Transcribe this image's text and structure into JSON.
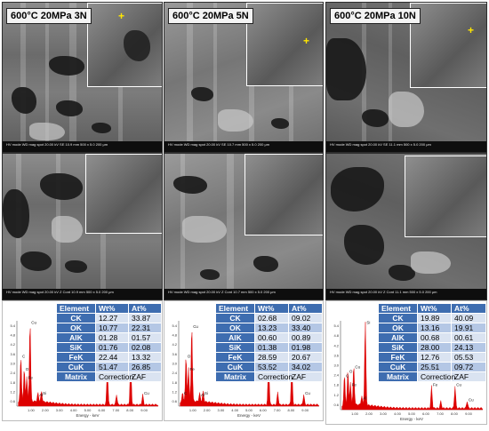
{
  "panels": [
    {
      "label": "600°C 20MPa 3N",
      "sem_top_info": "HV  mode  WD  mag  spot  20.00 kV  SE  10.9 mm  500 x  5.0   200 μm",
      "sem_bottom_info": "HV  mode  WD  mag  spot  20.00 kV  Z Cont  10.9 mm  500 x  5.0   200 μm",
      "scale": "200 μm",
      "table": {
        "headers": [
          "Element",
          "Wt%",
          "At%"
        ],
        "rows": [
          [
            "CK",
            "12.27",
            "33.87"
          ],
          [
            "OK",
            "10.77",
            "22.31"
          ],
          [
            "AlK",
            "01.28",
            "01.57"
          ],
          [
            "SiK",
            "01.76",
            "02.08"
          ],
          [
            "FeK",
            "22.44",
            "13.32"
          ],
          [
            "CuK",
            "51.47",
            "26.85"
          ],
          [
            "Matrix",
            "Correction",
            "ZAF"
          ]
        ]
      }
    },
    {
      "label": "600°C 20MPa 5N",
      "sem_top_info": "HV  mode  WD  mag  spot  20.00 kV  SE  10.7 mm  500 x  5.0   200 μm",
      "sem_bottom_info": "HV  mode  WD  mag  spot  20.00 kV  Z Cont  10.7 mm  500 x  5.0   200 μm",
      "scale": "200 μm",
      "table": {
        "headers": [
          "Element",
          "Wt%",
          "At%"
        ],
        "rows": [
          [
            "CK",
            "02.68",
            "09.02"
          ],
          [
            "OK",
            "13.23",
            "33.40"
          ],
          [
            "AlK",
            "00.60",
            "00.89"
          ],
          [
            "SiK",
            "01.38",
            "01.98"
          ],
          [
            "FeK",
            "28.59",
            "20.67"
          ],
          [
            "CuK",
            "53.52",
            "34.02"
          ],
          [
            "Matrix",
            "Correction",
            "ZAF"
          ]
        ]
      }
    },
    {
      "label": "600°C 20MPa 10N",
      "sem_top_info": "HV  mode  WD  mag  spot  20.00 kV  SE  11.1 mm  500 x  5.0   200 μm",
      "sem_bottom_info": "HV  mode  WD  mag  spot  20.00 kV  Z Cont  11.1 mm  500 x  5.0   200 μm",
      "scale": "200 μm",
      "table": {
        "headers": [
          "Element",
          "Wt%",
          "At%"
        ],
        "rows": [
          [
            "CK",
            "19.89",
            "40.09"
          ],
          [
            "OK",
            "13.16",
            "19.91"
          ],
          [
            "AlK",
            "00.68",
            "00.61"
          ],
          [
            "SiK",
            "28.00",
            "24.13"
          ],
          [
            "FeK",
            "12.76",
            "05.53"
          ],
          [
            "CuK",
            "25.51",
            "09.72"
          ],
          [
            "Matrix",
            "Correction",
            "ZAF"
          ]
        ]
      }
    }
  ],
  "spectrum": {
    "xlabel": "Energy - keV",
    "x_ticks": [
      "1.00",
      "2.00",
      "3.00",
      "4.00",
      "5.00",
      "6.00",
      "7.00",
      "8.00",
      "9.00"
    ],
    "y_ticks": [
      "5.4",
      "4.8",
      "4.2",
      "3.6",
      "3.0",
      "2.4",
      "1.8",
      "1.2",
      "0.6"
    ],
    "peak_labels": [
      "Cu",
      "O",
      "Fe",
      "C",
      "Al",
      "Si",
      "Cu",
      "Fe",
      "Cu"
    ]
  },
  "marker": "+",
  "colors": {
    "spectrum_fill": "#dd0000",
    "table_header": "#3e6db0",
    "row_light": "#dae3f1",
    "row_mid": "#b4c7e5"
  }
}
